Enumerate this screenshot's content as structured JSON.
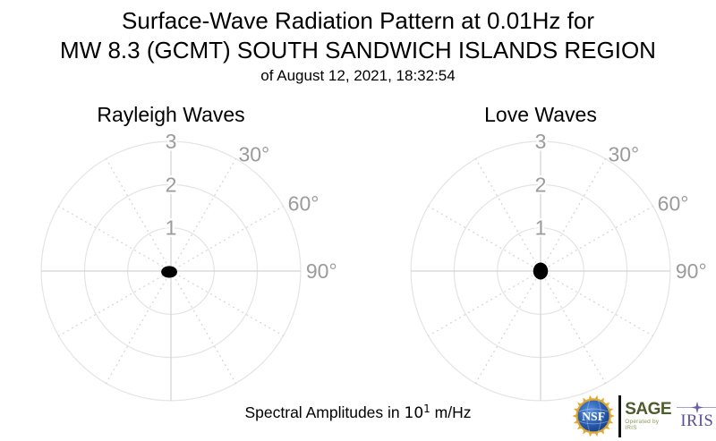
{
  "header": {
    "title_line1": "Surface-Wave Radiation Pattern at 0.01Hz for",
    "title_line2": "MW 8.3 (GCMT) SOUTH SANDWICH ISLANDS REGION",
    "subtitle": "of August 12, 2021, 18:32:54"
  },
  "caption": {
    "prefix": "Spectral Amplitudes in ",
    "base": "10",
    "exponent": "1",
    "suffix": " m/Hz"
  },
  "footer_logos": {
    "nsf_label": "NSF",
    "sage_label": "SAGE",
    "sage_sub": "Operated by IRIS",
    "iris_label": "IRIS",
    "colors": {
      "sage_green": "#4d5c2d",
      "sage_sub_green": "#8a9a5b",
      "iris_purple": "#5b4e97",
      "nsf_blue_light": "#4a85d8",
      "nsf_blue_dark": "#123a7d",
      "nsf_gold": "#e3a82b"
    }
  },
  "style": {
    "grid_circle": "#e4e4e4",
    "grid_axis": "#d3d3d3",
    "grid_dotted": "#d8d8d8",
    "tick_label": "#9b9b9b",
    "pattern_fill": "#000000"
  },
  "chart_data": [
    {
      "type": "polar",
      "title": "Rayleigh Waves",
      "r_ticks": [
        1,
        2,
        3
      ],
      "r_max": 3,
      "theta_axis_deg": [
        0,
        90,
        180,
        270
      ],
      "theta_grid_deg": [
        30,
        60,
        120,
        150,
        210,
        240,
        300,
        330
      ],
      "theta_labels": [
        {
          "deg": 30,
          "text": "30°"
        },
        {
          "deg": 60,
          "text": "60°"
        },
        {
          "deg": 90,
          "text": "90°"
        }
      ],
      "pattern": {
        "offset_units": {
          "x": -0.04,
          "y": 0.02
        },
        "azimuth_deg": [
          0,
          15,
          30,
          45,
          60,
          75,
          90,
          105,
          120,
          135,
          150,
          165,
          180,
          195,
          210,
          225,
          240,
          255,
          270,
          285,
          300,
          315,
          330,
          345
        ],
        "amplitude": [
          0.105,
          0.107,
          0.113,
          0.123,
          0.136,
          0.149,
          0.155,
          0.149,
          0.136,
          0.123,
          0.113,
          0.107,
          0.105,
          0.107,
          0.113,
          0.123,
          0.136,
          0.149,
          0.155,
          0.149,
          0.136,
          0.123,
          0.113,
          0.107
        ]
      }
    },
    {
      "type": "polar",
      "title": "Love Waves",
      "r_ticks": [
        1,
        2,
        3
      ],
      "r_max": 3,
      "theta_axis_deg": [
        0,
        90,
        180,
        270
      ],
      "theta_grid_deg": [
        30,
        60,
        120,
        150,
        210,
        240,
        300,
        330
      ],
      "theta_labels": [
        {
          "deg": 30,
          "text": "30°"
        },
        {
          "deg": 60,
          "text": "60°"
        },
        {
          "deg": 90,
          "text": "90°"
        }
      ],
      "pattern": {
        "offset_units": {
          "x": 0.0,
          "y": 0.0
        },
        "azimuth_deg": [
          0,
          15,
          30,
          45,
          60,
          75,
          90,
          105,
          120,
          135,
          150,
          165,
          180,
          195,
          210,
          225,
          240,
          255,
          270,
          285,
          300,
          315,
          330,
          345
        ],
        "amplitude": [
          0.165,
          0.163,
          0.157,
          0.151,
          0.145,
          0.141,
          0.14,
          0.141,
          0.145,
          0.151,
          0.157,
          0.163,
          0.165,
          0.163,
          0.157,
          0.151,
          0.145,
          0.141,
          0.14,
          0.141,
          0.145,
          0.151,
          0.157,
          0.163
        ]
      }
    }
  ]
}
